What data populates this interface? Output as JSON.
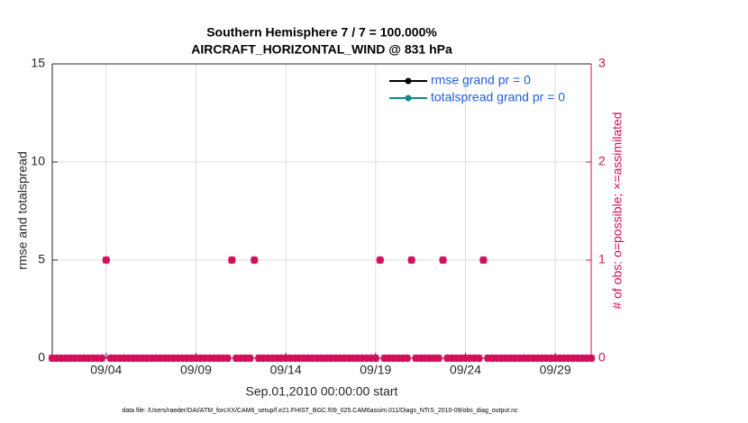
{
  "chart_data": {
    "type": "scatter",
    "title": "Southern Hemisphere 7 / 7 = 100.000%",
    "subtitle": "AIRCRAFT_HORIZONTAL_WIND @ 831 hPa",
    "ylabel": "rmse and totalspread",
    "y2label": "# of obs: o=possible; ×=assimilated",
    "xlabel": "Sep.01,2010 00:00:00 start",
    "footnote": "data file: /Users/raeder/DAI/ATM_forcXX/CAM6_setup/f.e21.FHIST_BGC.f09_025.CAM6assim.011/Diags_NTrS_2010-09/obs_diag_output.nc",
    "legend": [
      {
        "name": "rmse grand pr = 0",
        "color": "#000000"
      },
      {
        "name": "totalspread grand pr = 0",
        "color": "#138a8a"
      }
    ],
    "grid": true,
    "xlim": [
      0,
      30
    ],
    "xticks": [
      {
        "value": 3,
        "label": "09/04"
      },
      {
        "value": 8,
        "label": "09/09"
      },
      {
        "value": 13,
        "label": "09/14"
      },
      {
        "value": 18,
        "label": "09/19"
      },
      {
        "value": 23,
        "label": "09/24"
      },
      {
        "value": 28,
        "label": "09/29"
      }
    ],
    "ylim": [
      0,
      15
    ],
    "yticks": [
      0,
      5,
      10,
      15
    ],
    "y2lim": [
      0,
      3
    ],
    "y2ticks": [
      0,
      1,
      2,
      3
    ],
    "series": [
      {
        "axis": "y2",
        "color": "#d1115b",
        "x": [
          0,
          0.25,
          0.5,
          0.75,
          1,
          1.25,
          1.5,
          1.75,
          2,
          2.25,
          2.5,
          2.75,
          3,
          3.25,
          3.5,
          3.75,
          4,
          4.25,
          4.5,
          4.75,
          5,
          5.25,
          5.5,
          5.75,
          6,
          6.25,
          6.5,
          6.75,
          7,
          7.25,
          7.5,
          7.75,
          8,
          8.25,
          8.5,
          8.75,
          9,
          9.25,
          9.5,
          9.75,
          10,
          10.25,
          10.5,
          10.75,
          11,
          11.25,
          11.5,
          11.75,
          12,
          12.25,
          12.5,
          12.75,
          13,
          13.25,
          13.5,
          13.75,
          14,
          14.25,
          14.5,
          14.75,
          15,
          15.25,
          15.5,
          15.75,
          16,
          16.25,
          16.5,
          16.75,
          17,
          17.25,
          17.5,
          17.75,
          18,
          18.25,
          18.5,
          18.75,
          19,
          19.25,
          19.5,
          19.75,
          20,
          20.25,
          20.5,
          20.75,
          21,
          21.25,
          21.5,
          21.75,
          22,
          22.25,
          22.5,
          22.75,
          23,
          23.25,
          23.5,
          23.75,
          24,
          24.25,
          24.5,
          24.75,
          25,
          25.25,
          25.5,
          25.75,
          26,
          26.25,
          26.5,
          26.75,
          27,
          27.25,
          27.5,
          27.75,
          28,
          28.25,
          28.5,
          28.75,
          29,
          29.25,
          29.5,
          29.75,
          30
        ],
        "values": [
          0,
          0,
          0,
          0,
          0,
          0,
          0,
          0,
          0,
          0,
          0,
          0,
          1,
          0,
          0,
          0,
          0,
          0,
          0,
          0,
          0,
          0,
          0,
          0,
          0,
          0,
          0,
          0,
          0,
          0,
          0,
          0,
          0,
          0,
          0,
          0,
          0,
          0,
          0,
          0,
          1,
          0,
          0,
          0,
          0,
          1,
          0,
          0,
          0,
          0,
          0,
          0,
          0,
          0,
          0,
          0,
          0,
          0,
          0,
          0,
          0,
          0,
          0,
          0,
          0,
          0,
          0,
          0,
          0,
          0,
          0,
          0,
          0,
          1,
          0,
          0,
          0,
          0,
          0,
          0,
          1,
          0,
          0,
          0,
          0,
          0,
          0,
          1,
          0,
          0,
          0,
          0,
          0,
          0,
          0,
          0,
          1,
          0,
          0,
          0,
          0,
          0,
          0,
          0,
          0,
          0,
          0,
          0,
          0,
          0,
          0,
          0,
          0,
          0,
          0,
          0,
          0,
          0,
          0,
          0,
          0
        ]
      }
    ]
  }
}
